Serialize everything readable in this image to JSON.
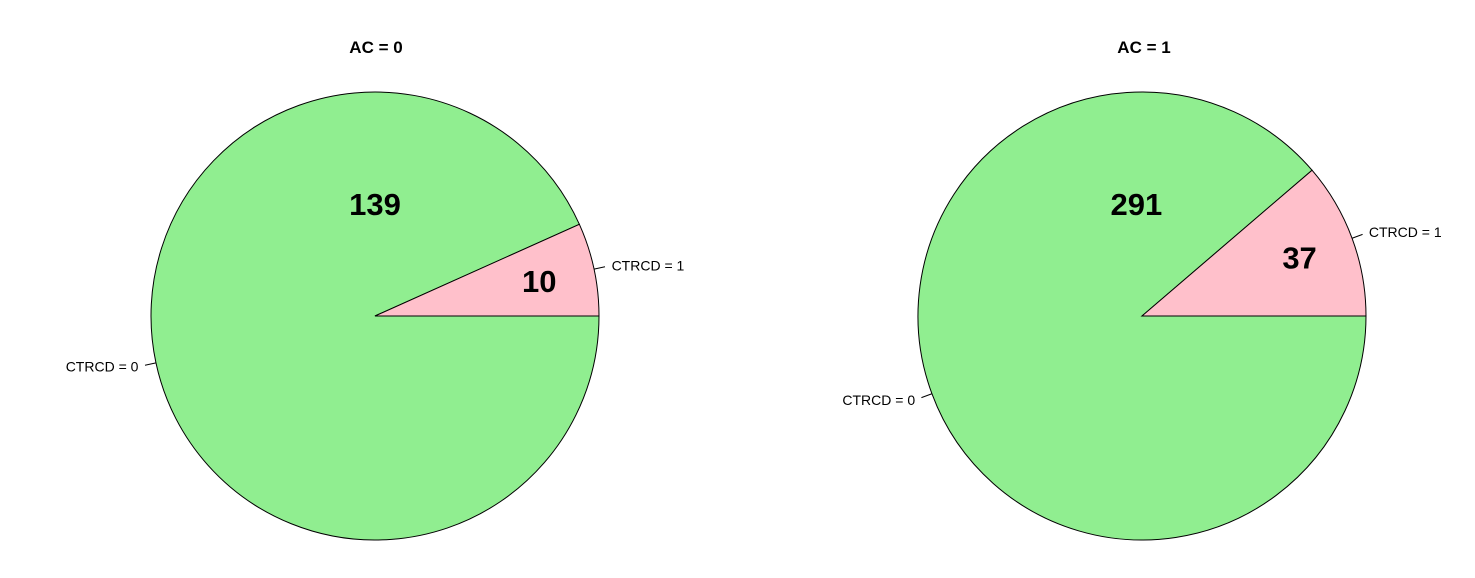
{
  "chart_data": [
    {
      "type": "pie",
      "title": "AC = 0",
      "slices": [
        {
          "label": "CTRCD = 0",
          "value": 139,
          "color": "#90EE90"
        },
        {
          "label": "CTRCD = 1",
          "value": 10,
          "color": "#FFC0CB"
        }
      ]
    },
    {
      "type": "pie",
      "title": "AC = 1",
      "slices": [
        {
          "label": "CTRCD = 0",
          "value": 291,
          "color": "#90EE90"
        },
        {
          "label": "CTRCD = 1",
          "value": 37,
          "color": "#FFC0CB"
        }
      ]
    }
  ]
}
